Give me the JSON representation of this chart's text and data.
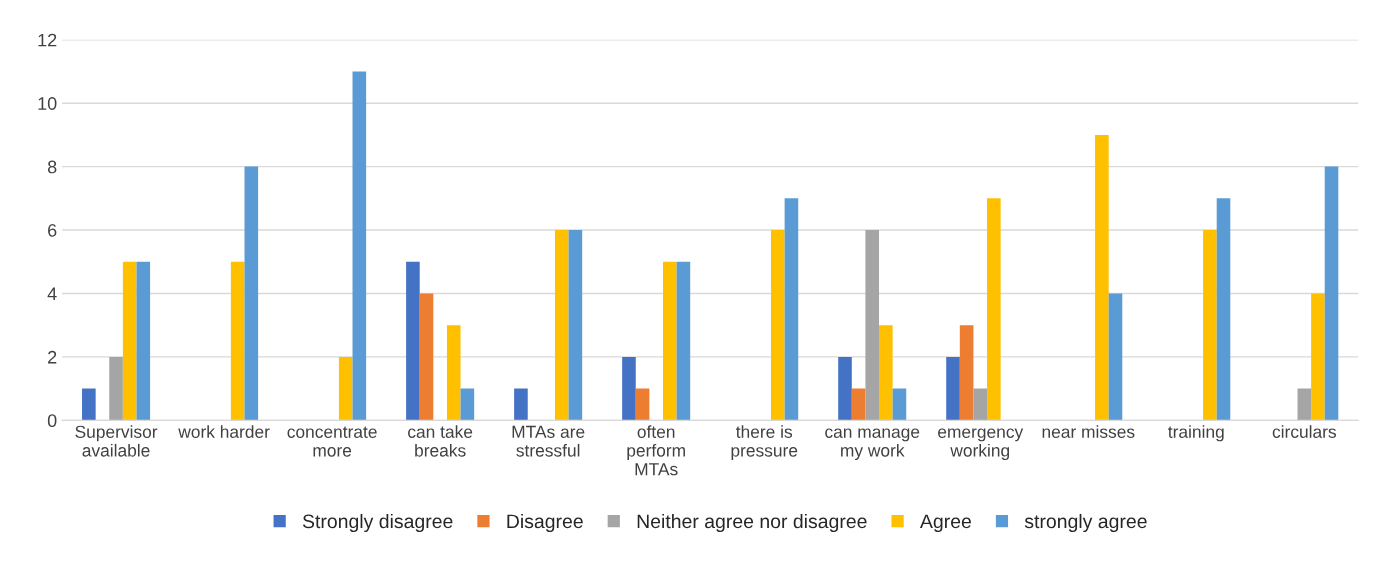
{
  "chart_data": {
    "type": "bar",
    "categories": [
      "Supervisor\navailable",
      "work harder",
      "concentrate\nmore",
      "can take\nbreaks",
      "MTAs are\nstressful",
      "often\nperform\nMTAs",
      "there is\npressure",
      "can manage\nmy work",
      "emergency\nworking",
      "near misses",
      "training",
      "circulars"
    ],
    "series": [
      {
        "name": "Strongly disagree",
        "color": "#4472c4",
        "values": [
          1,
          0,
          0,
          5,
          1,
          2,
          0,
          2,
          2,
          0,
          0,
          0
        ]
      },
      {
        "name": "Disagree",
        "color": "#ed7d31",
        "values": [
          0,
          0,
          0,
          4,
          0,
          1,
          0,
          1,
          3,
          0,
          0,
          0
        ]
      },
      {
        "name": "Neither agree nor disagree",
        "color": "#a5a5a5",
        "values": [
          2,
          0,
          0,
          0,
          0,
          0,
          0,
          6,
          1,
          0,
          0,
          1
        ]
      },
      {
        "name": "Agree",
        "color": "#ffc000",
        "values": [
          5,
          5,
          2,
          3,
          6,
          5,
          6,
          3,
          7,
          9,
          6,
          4
        ]
      },
      {
        "name": "strongly agree",
        "color": "#5b9bd5",
        "values": [
          5,
          8,
          11,
          1,
          6,
          5,
          7,
          1,
          0,
          4,
          7,
          8
        ]
      }
    ],
    "ylim": [
      0,
      12
    ],
    "yticks": [
      0,
      2,
      4,
      6,
      8,
      10,
      12
    ],
    "grid": "y",
    "legend": "bottom"
  }
}
